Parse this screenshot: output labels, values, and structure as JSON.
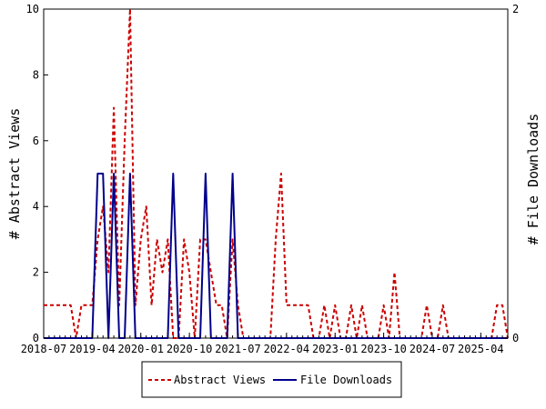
{
  "chart_data": {
    "type": "line",
    "title": "",
    "grid": false,
    "legend_position": "bottom",
    "x_tick_labels": [
      "2018-07",
      "2019-04",
      "2020-01",
      "2020-10",
      "2021-07",
      "2022-04",
      "2023-01",
      "2023-10",
      "2024-07",
      "2025-04"
    ],
    "xlim": [
      "2018-07",
      "2025-09"
    ],
    "y_left": {
      "label": "# Abstract Views",
      "ylim": [
        0,
        10
      ],
      "ticks": [
        "0",
        "2",
        "4",
        "6",
        "8",
        "10"
      ]
    },
    "y_right": {
      "label": "# File Downloads",
      "ylim": [
        0,
        2
      ],
      "ticks": [
        "0",
        "2"
      ]
    },
    "series": [
      {
        "name": "Abstract Views",
        "axis": "left",
        "color": "#cc0000",
        "style": "dashed",
        "points": [
          [
            "2018-07",
            1
          ],
          [
            "2018-08",
            1
          ],
          [
            "2018-09",
            1
          ],
          [
            "2018-10",
            1
          ],
          [
            "2018-11",
            1
          ],
          [
            "2018-12",
            1
          ],
          [
            "2019-01",
            0
          ],
          [
            "2019-02",
            1
          ],
          [
            "2019-03",
            1
          ],
          [
            "2019-04",
            1
          ],
          [
            "2019-05",
            3
          ],
          [
            "2019-06",
            4
          ],
          [
            "2019-07",
            2
          ],
          [
            "2019-08",
            7
          ],
          [
            "2019-09",
            1
          ],
          [
            "2019-10",
            6
          ],
          [
            "2019-11",
            10
          ],
          [
            "2019-12",
            1
          ],
          [
            "2020-01",
            3
          ],
          [
            "2020-02",
            4
          ],
          [
            "2020-03",
            1
          ],
          [
            "2020-04",
            3
          ],
          [
            "2020-05",
            2
          ],
          [
            "2020-06",
            3
          ],
          [
            "2020-07",
            0
          ],
          [
            "2020-08",
            0
          ],
          [
            "2020-09",
            3
          ],
          [
            "2020-10",
            2
          ],
          [
            "2020-11",
            0
          ],
          [
            "2020-12",
            3
          ],
          [
            "2021-01",
            3
          ],
          [
            "2021-02",
            2
          ],
          [
            "2021-03",
            1
          ],
          [
            "2021-04",
            1
          ],
          [
            "2021-05",
            0
          ],
          [
            "2021-06",
            3
          ],
          [
            "2021-07",
            1
          ],
          [
            "2021-08",
            0
          ],
          [
            "2021-09",
            0
          ],
          [
            "2021-10",
            0
          ],
          [
            "2021-11",
            0
          ],
          [
            "2021-12",
            0
          ],
          [
            "2022-01",
            0
          ],
          [
            "2022-02",
            3
          ],
          [
            "2022-03",
            5
          ],
          [
            "2022-04",
            1
          ],
          [
            "2022-05",
            1
          ],
          [
            "2022-06",
            1
          ],
          [
            "2022-07",
            1
          ],
          [
            "2022-08",
            1
          ],
          [
            "2022-09",
            0
          ],
          [
            "2022-10",
            0
          ],
          [
            "2022-11",
            1
          ],
          [
            "2022-12",
            0
          ],
          [
            "2023-01",
            1
          ],
          [
            "2023-02",
            0
          ],
          [
            "2023-03",
            0
          ],
          [
            "2023-04",
            1
          ],
          [
            "2023-05",
            0
          ],
          [
            "2023-06",
            1
          ],
          [
            "2023-07",
            0
          ],
          [
            "2023-08",
            0
          ],
          [
            "2023-09",
            0
          ],
          [
            "2023-10",
            1
          ],
          [
            "2023-11",
            0
          ],
          [
            "2023-12",
            2
          ],
          [
            "2024-01",
            0
          ],
          [
            "2024-02",
            0
          ],
          [
            "2024-03",
            0
          ],
          [
            "2024-04",
            0
          ],
          [
            "2024-05",
            0
          ],
          [
            "2024-06",
            1
          ],
          [
            "2024-07",
            0
          ],
          [
            "2024-08",
            0
          ],
          [
            "2024-09",
            1
          ],
          [
            "2024-10",
            0
          ],
          [
            "2024-11",
            0
          ],
          [
            "2024-12",
            0
          ],
          [
            "2025-01",
            0
          ],
          [
            "2025-02",
            0
          ],
          [
            "2025-03",
            0
          ],
          [
            "2025-04",
            0
          ],
          [
            "2025-05",
            0
          ],
          [
            "2025-06",
            0
          ],
          [
            "2025-07",
            1
          ],
          [
            "2025-08",
            1
          ],
          [
            "2025-09",
            0
          ]
        ]
      },
      {
        "name": "File Downloads",
        "axis": "right",
        "color": "#00008b",
        "style": "solid",
        "points": [
          [
            "2018-07",
            0
          ],
          [
            "2019-03",
            0
          ],
          [
            "2019-04",
            0
          ],
          [
            "2019-05",
            1
          ],
          [
            "2019-06",
            1
          ],
          [
            "2019-07",
            0
          ],
          [
            "2019-08",
            1
          ],
          [
            "2019-09",
            0
          ],
          [
            "2019-10",
            0
          ],
          [
            "2019-11",
            1
          ],
          [
            "2019-12",
            0
          ],
          [
            "2020-06",
            0
          ],
          [
            "2020-07",
            1
          ],
          [
            "2020-08",
            0
          ],
          [
            "2020-09",
            0
          ],
          [
            "2020-10",
            0
          ],
          [
            "2020-11",
            0
          ],
          [
            "2020-12",
            0
          ],
          [
            "2021-01",
            1
          ],
          [
            "2021-02",
            0
          ],
          [
            "2021-05",
            0
          ],
          [
            "2021-06",
            1
          ],
          [
            "2021-07",
            0
          ],
          [
            "2025-09",
            0
          ]
        ]
      }
    ]
  }
}
